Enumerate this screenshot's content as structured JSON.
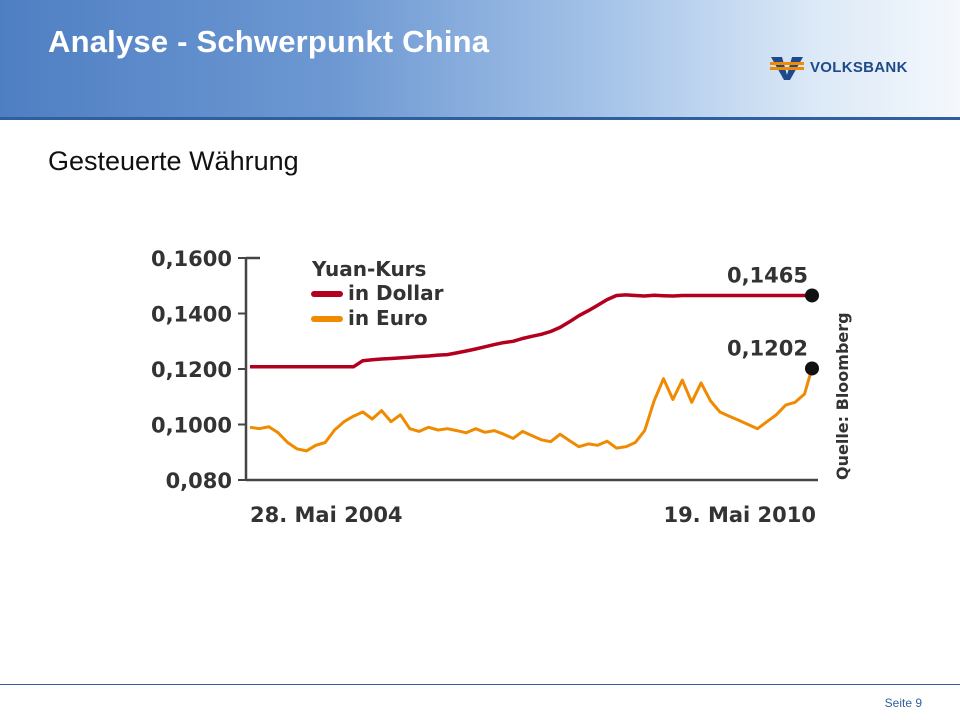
{
  "slide": {
    "title": "Analyse - Schwerpunkt China",
    "subtitle": "Gesteuerte Währung",
    "brand": "VOLKSBANK",
    "page_label": "Seite 9"
  },
  "colors": {
    "dollar": "#b3001f",
    "euro": "#f08a00",
    "brand": "#1f4a8a"
  },
  "chart_data": {
    "type": "line",
    "title": "Yuan-Kurs",
    "source": "Quelle: Bloomberg",
    "x_start_label": "28. Mai 2004",
    "x_end_label": "19. Mai 2010",
    "x": [
      2004.4,
      2004.5,
      2004.6,
      2004.7,
      2004.8,
      2004.9,
      2005.0,
      2005.1,
      2005.2,
      2005.3,
      2005.4,
      2005.5,
      2005.6,
      2005.7,
      2005.8,
      2005.9,
      2006.0,
      2006.1,
      2006.2,
      2006.3,
      2006.4,
      2006.5,
      2006.6,
      2006.7,
      2006.8,
      2006.9,
      2007.0,
      2007.1,
      2007.2,
      2007.3,
      2007.4,
      2007.5,
      2007.6,
      2007.7,
      2007.8,
      2007.9,
      2008.0,
      2008.1,
      2008.2,
      2008.3,
      2008.4,
      2008.5,
      2008.6,
      2008.7,
      2008.8,
      2008.9,
      2009.0,
      2009.1,
      2009.2,
      2009.3,
      2009.4,
      2009.5,
      2009.6,
      2009.7,
      2009.8,
      2009.9,
      2010.0,
      2010.1,
      2010.2,
      2010.3,
      2010.38
    ],
    "ylim": [
      0.08,
      0.16
    ],
    "yticks": [
      "0,1600",
      "0,1400",
      "0,1200",
      "0,1000",
      "0,080"
    ],
    "ytick_values": [
      0.16,
      0.14,
      0.12,
      0.1,
      0.08
    ],
    "series": [
      {
        "name": "in Dollar",
        "color_key": "dollar",
        "end_label": "0,1465",
        "values": [
          0.1208,
          0.1208,
          0.1208,
          0.1208,
          0.1208,
          0.1208,
          0.1208,
          0.1208,
          0.1208,
          0.1208,
          0.1208,
          0.1208,
          0.123,
          0.1233,
          0.1236,
          0.1238,
          0.124,
          0.1242,
          0.1245,
          0.1247,
          0.125,
          0.1252,
          0.1258,
          0.1265,
          0.1272,
          0.128,
          0.1288,
          0.1295,
          0.13,
          0.131,
          0.1318,
          0.1325,
          0.1335,
          0.135,
          0.137,
          0.1392,
          0.141,
          0.143,
          0.145,
          0.1465,
          0.1467,
          0.1465,
          0.1463,
          0.1466,
          0.1464,
          0.1463,
          0.1465,
          0.1465,
          0.1465,
          0.1465,
          0.1465,
          0.1465,
          0.1465,
          0.1465,
          0.1465,
          0.1465,
          0.1465,
          0.1465,
          0.1465,
          0.1465,
          0.1465
        ]
      },
      {
        "name": "in Euro",
        "color_key": "euro",
        "end_label": "0,1202",
        "values": [
          0.099,
          0.0985,
          0.0992,
          0.097,
          0.0935,
          0.0912,
          0.0905,
          0.0925,
          0.0935,
          0.098,
          0.101,
          0.103,
          0.1045,
          0.102,
          0.105,
          0.101,
          0.1035,
          0.0985,
          0.0975,
          0.099,
          0.098,
          0.0985,
          0.0978,
          0.097,
          0.0985,
          0.0972,
          0.0978,
          0.0965,
          0.095,
          0.0975,
          0.096,
          0.0945,
          0.0938,
          0.0965,
          0.0942,
          0.092,
          0.093,
          0.0925,
          0.094,
          0.0915,
          0.092,
          0.0935,
          0.0978,
          0.1085,
          0.1165,
          0.109,
          0.116,
          0.108,
          0.115,
          0.1085,
          0.1045,
          0.103,
          0.1015,
          0.1,
          0.0985,
          0.101,
          0.1035,
          0.107,
          0.108,
          0.111,
          0.1202
        ]
      }
    ]
  }
}
